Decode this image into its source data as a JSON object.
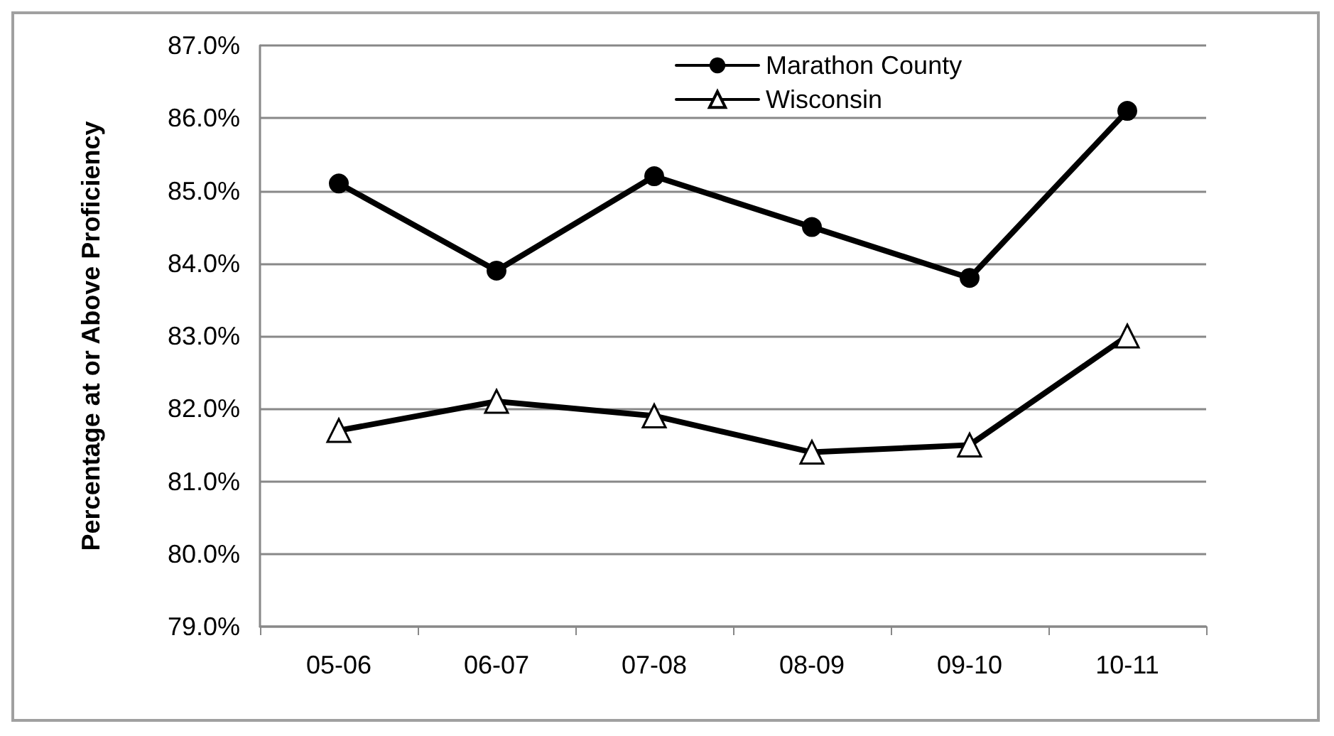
{
  "chart_data": {
    "type": "line",
    "ylabel": "Percentage at or Above Proficiency",
    "categories": [
      "05-06",
      "06-07",
      "07-08",
      "08-09",
      "09-10",
      "10-11"
    ],
    "series": [
      {
        "name": "Marathon County",
        "color": "#000000",
        "marker": "circle",
        "values": [
          85.1,
          83.9,
          85.2,
          84.5,
          83.8,
          86.1
        ]
      },
      {
        "name": "Wisconsin",
        "color": "#000000",
        "marker": "triangle",
        "values": [
          81.7,
          82.1,
          81.9,
          81.4,
          81.5,
          83.0
        ]
      }
    ],
    "ylim": [
      79,
      87
    ],
    "yticks": [
      {
        "value": 79,
        "label": "79.0%"
      },
      {
        "value": 80,
        "label": "80.0%"
      },
      {
        "value": 81,
        "label": "81.0%"
      },
      {
        "value": 82,
        "label": "82.0%"
      },
      {
        "value": 83,
        "label": "83.0%"
      },
      {
        "value": 84,
        "label": "84.0%"
      },
      {
        "value": 85,
        "label": "85.0%"
      },
      {
        "value": 86,
        "label": "86.0%"
      },
      {
        "value": 87,
        "label": "87.0%"
      }
    ],
    "grid": "y",
    "legend": "top",
    "line_style": "solid"
  }
}
